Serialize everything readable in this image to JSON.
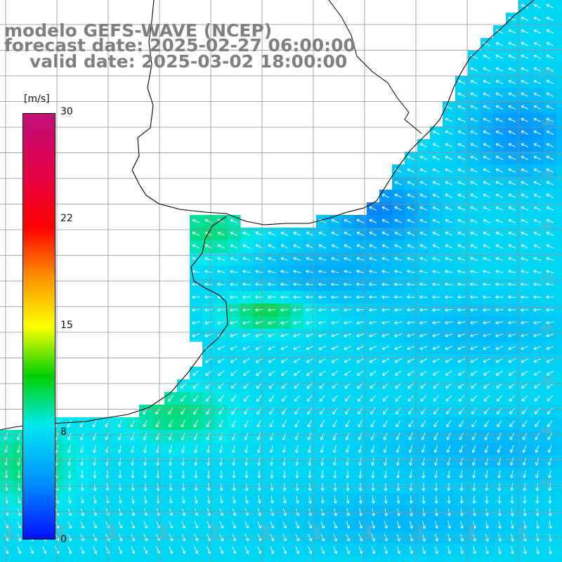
{
  "title": {
    "line1": "modelo GEFS-WAVE (NCEP)",
    "line2": "forecast date: 2025-02-27 06:00:00",
    "line3": "valid date: 2025-03-02 18:00:00"
  },
  "colorbar": {
    "unit": "[m/s]",
    "ticks": [
      "30",
      "22",
      "15",
      "8",
      "0"
    ],
    "tick_values": [
      30,
      22,
      15,
      8,
      0
    ],
    "range": [
      0,
      30
    ],
    "gradient_stops": [
      {
        "value": 0,
        "color": "#0010ff"
      },
      {
        "value": 4,
        "color": "#0090ff"
      },
      {
        "value": 8,
        "color": "#00e8f0"
      },
      {
        "value": 11.5,
        "color": "#00d000"
      },
      {
        "value": 15,
        "color": "#ffff00"
      },
      {
        "value": 18.5,
        "color": "#ff9000"
      },
      {
        "value": 22,
        "color": "#ff0000"
      },
      {
        "value": 26,
        "color": "#e0004a"
      },
      {
        "value": 30,
        "color": "#c0107a"
      }
    ]
  },
  "latitude_labels": [
    "33S",
    "34S",
    "35S",
    "36S",
    "37S",
    "38S",
    "39S",
    "40S",
    "41S"
  ],
  "longitude_labels": [
    "61W",
    "60W",
    "59W",
    "58W",
    "57W",
    "56W",
    "55W",
    "54W",
    "53W",
    "52W",
    "51W"
  ],
  "colors": {
    "land": "#ffffff",
    "grid": "#909090",
    "coast": "#000000",
    "arrow": "#ffffff",
    "title": "#7f7f7f"
  }
}
